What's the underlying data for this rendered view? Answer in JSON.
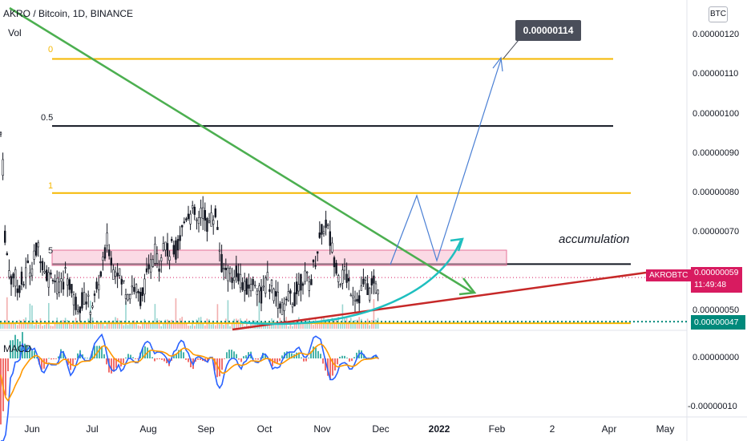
{
  "header": {
    "symbol": "AKRO / Bitcoin, 1D, BINANCE",
    "volume_label": "Vol",
    "macd_label": "MACD",
    "currency": "BTC"
  },
  "annotations": {
    "target_price": "0.00000114",
    "accumulation_text": "accumulation",
    "pair_badge": "AKROBTC",
    "current_price": "0.00000059",
    "countdown": "11:49:48",
    "low_price": "0.00000047",
    "fib_top": "0",
    "fib_mid": "0.5",
    "fib_lower": "1",
    "fib_base": "5"
  },
  "colors": {
    "fib_gold": "#f5b700",
    "trend_green": "#4caf50",
    "support_red": "#c62828",
    "projection_blue": "#4a7fd4",
    "curve_teal": "#1fbfbf",
    "price_badge": "#d81b60",
    "low_badge": "#00897b",
    "up_candle": "#131722",
    "down_candle": "#131722",
    "macd_line": "#2962ff",
    "signal_line": "#ff9800"
  },
  "chart_data": {
    "type": "candlestick",
    "price_axis": {
      "ticks": [
        "0.00000120",
        "0.00000110",
        "0.00000100",
        "0.00000090",
        "0.00000080",
        "0.00000070",
        "0.00000050"
      ],
      "tick_values": [
        120,
        110,
        100,
        90,
        80,
        70,
        50
      ],
      "unit": "1e-8 BTC"
    },
    "macd_axis": {
      "ticks": [
        "0.00000000",
        "-0.00000010"
      ],
      "tick_values": [
        0,
        -10
      ]
    },
    "time_axis": {
      "ticks": [
        "Jun",
        "Jul",
        "Aug",
        "Sep",
        "Oct",
        "Nov",
        "Dec",
        "2022",
        "Feb",
        "2",
        "Apr",
        "May"
      ],
      "bold": [
        "2022"
      ]
    },
    "price_path": [
      [
        0,
        97
      ],
      [
        2,
        93
      ],
      [
        4,
        85
      ],
      [
        6,
        70
      ],
      [
        8,
        66
      ],
      [
        10,
        62
      ],
      [
        14,
        58
      ],
      [
        18,
        60
      ],
      [
        22,
        55
      ],
      [
        26,
        58
      ],
      [
        30,
        57
      ],
      [
        34,
        62
      ],
      [
        38,
        60
      ],
      [
        42,
        63
      ],
      [
        46,
        66
      ],
      [
        50,
        65
      ],
      [
        54,
        62
      ],
      [
        58,
        60
      ],
      [
        62,
        58
      ],
      [
        66,
        60
      ],
      [
        70,
        57
      ],
      [
        74,
        55
      ],
      [
        78,
        57
      ],
      [
        82,
        60
      ],
      [
        86,
        58
      ],
      [
        90,
        54
      ],
      [
        94,
        52
      ],
      [
        100,
        52
      ],
      [
        106,
        54
      ],
      [
        112,
        51
      ],
      [
        118,
        53
      ],
      [
        124,
        58
      ],
      [
        130,
        63
      ],
      [
        134,
        68
      ],
      [
        138,
        64
      ],
      [
        142,
        60
      ],
      [
        146,
        62
      ],
      [
        150,
        58
      ],
      [
        154,
        57
      ],
      [
        158,
        55
      ],
      [
        162,
        55
      ],
      [
        166,
        57
      ],
      [
        170,
        55
      ],
      [
        174,
        53
      ],
      [
        178,
        55
      ],
      [
        182,
        58
      ],
      [
        186,
        60
      ],
      [
        190,
        63
      ],
      [
        194,
        65
      ],
      [
        198,
        62
      ],
      [
        202,
        66
      ],
      [
        206,
        68
      ],
      [
        210,
        64
      ],
      [
        214,
        66
      ],
      [
        218,
        65
      ],
      [
        222,
        67
      ],
      [
        226,
        70
      ],
      [
        230,
        73
      ],
      [
        234,
        76
      ],
      [
        238,
        74
      ],
      [
        242,
        75
      ],
      [
        246,
        72
      ],
      [
        250,
        74
      ],
      [
        254,
        76
      ],
      [
        258,
        72
      ],
      [
        262,
        73
      ],
      [
        266,
        74
      ],
      [
        270,
        75
      ],
      [
        274,
        66
      ],
      [
        278,
        60
      ],
      [
        282,
        61
      ],
      [
        286,
        59
      ],
      [
        290,
        58
      ],
      [
        294,
        61
      ],
      [
        298,
        59
      ],
      [
        302,
        57
      ],
      [
        306,
        55
      ],
      [
        310,
        57
      ],
      [
        314,
        56
      ],
      [
        318,
        58
      ],
      [
        322,
        56
      ],
      [
        326,
        54
      ],
      [
        330,
        56
      ],
      [
        334,
        58
      ],
      [
        338,
        56
      ],
      [
        342,
        55
      ],
      [
        346,
        53
      ],
      [
        350,
        52
      ],
      [
        354,
        50
      ],
      [
        358,
        52
      ],
      [
        362,
        54
      ],
      [
        366,
        53
      ],
      [
        370,
        55
      ],
      [
        374,
        57
      ],
      [
        378,
        59
      ],
      [
        382,
        58
      ],
      [
        386,
        57
      ],
      [
        390,
        60
      ],
      [
        394,
        64
      ],
      [
        398,
        68
      ],
      [
        402,
        70
      ],
      [
        406,
        73
      ],
      [
        410,
        70
      ],
      [
        414,
        66
      ],
      [
        418,
        63
      ],
      [
        422,
        60
      ],
      [
        426,
        58
      ],
      [
        430,
        60
      ],
      [
        434,
        58
      ],
      [
        438,
        56
      ],
      [
        442,
        55
      ],
      [
        446,
        53
      ],
      [
        450,
        55
      ],
      [
        454,
        57
      ],
      [
        458,
        56
      ],
      [
        462,
        55
      ],
      [
        466,
        57
      ],
      [
        470,
        56
      ],
      [
        474,
        57
      ]
    ],
    "levels": [
      {
        "label": "0",
        "value": 114,
        "color": "gold"
      },
      {
        "label": "0.5",
        "value": 97,
        "color": "black"
      },
      {
        "label": "1",
        "value": 80,
        "color": "gold"
      },
      {
        "label": "5",
        "value": 62,
        "color": "black"
      },
      {
        "value": 47,
        "color": "gold"
      }
    ],
    "current_price": 59,
    "low_price": 47,
    "target_price": 114
  }
}
